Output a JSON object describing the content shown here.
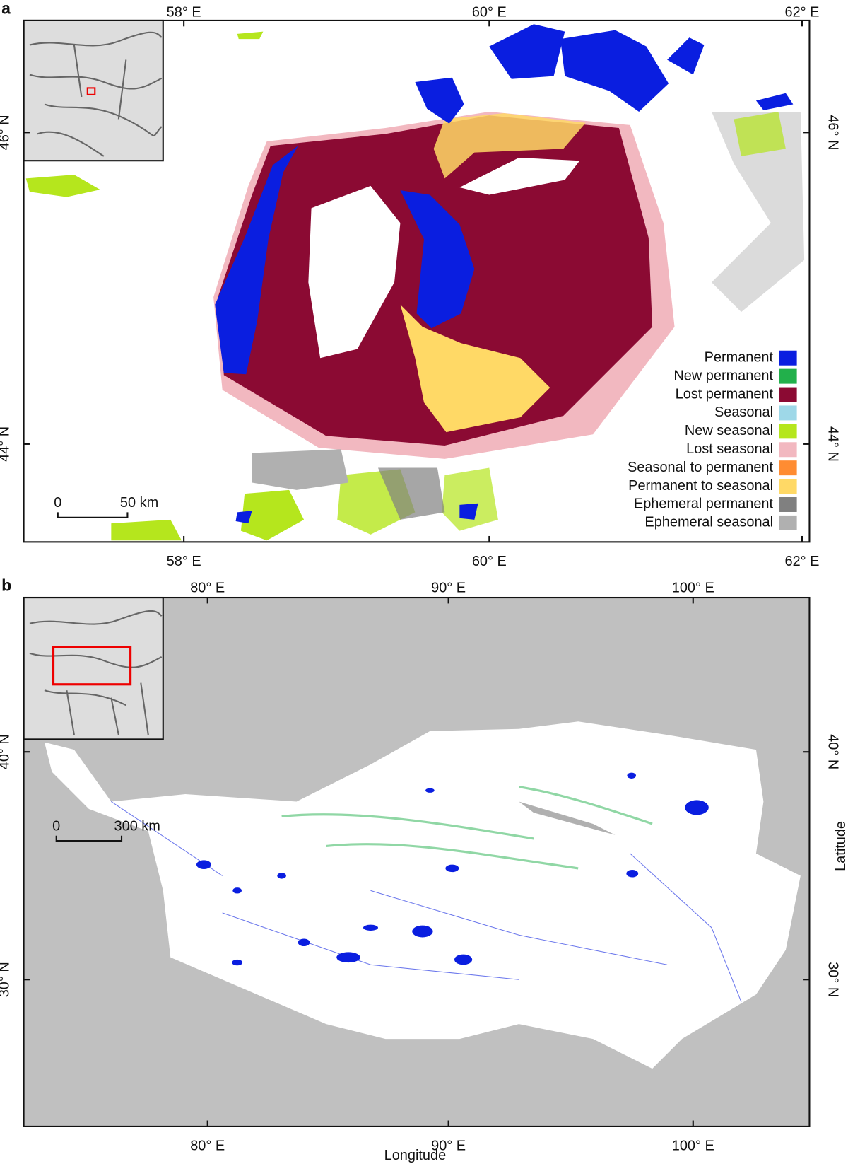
{
  "panels": [
    {
      "label": "a",
      "x_ticks": [
        "58° E",
        "60° E",
        "62° E"
      ],
      "y_ticks": [
        "46° N",
        "44° N"
      ],
      "scale_bar": [
        "0",
        "50 km"
      ],
      "legend": [
        {
          "name": "Permanent",
          "color": "#0a1ee0"
        },
        {
          "name": "New permanent",
          "color": "#22b04b"
        },
        {
          "name": "Lost permanent",
          "color": "#8b0a33"
        },
        {
          "name": "Seasonal",
          "color": "#9ed8e8"
        },
        {
          "name": "New seasonal",
          "color": "#b5e61d"
        },
        {
          "name": "Lost seasonal",
          "color": "#f2b8c0"
        },
        {
          "name": "Seasonal to permanent",
          "color": "#ff8c32"
        },
        {
          "name": "Permanent to seasonal",
          "color": "#ffd966"
        },
        {
          "name": "Ephemeral permanent",
          "color": "#808080"
        },
        {
          "name": "Ephemeral seasonal",
          "color": "#b0b0b0"
        }
      ]
    },
    {
      "label": "b",
      "x_ticks": [
        "80° E",
        "90° E",
        "100° E"
      ],
      "y_ticks": [
        "40° N",
        "30° N"
      ],
      "scale_bar": [
        "0",
        "300 km"
      ],
      "x_axis_title": "Longitude",
      "y_axis_title": "Latitude"
    }
  ]
}
